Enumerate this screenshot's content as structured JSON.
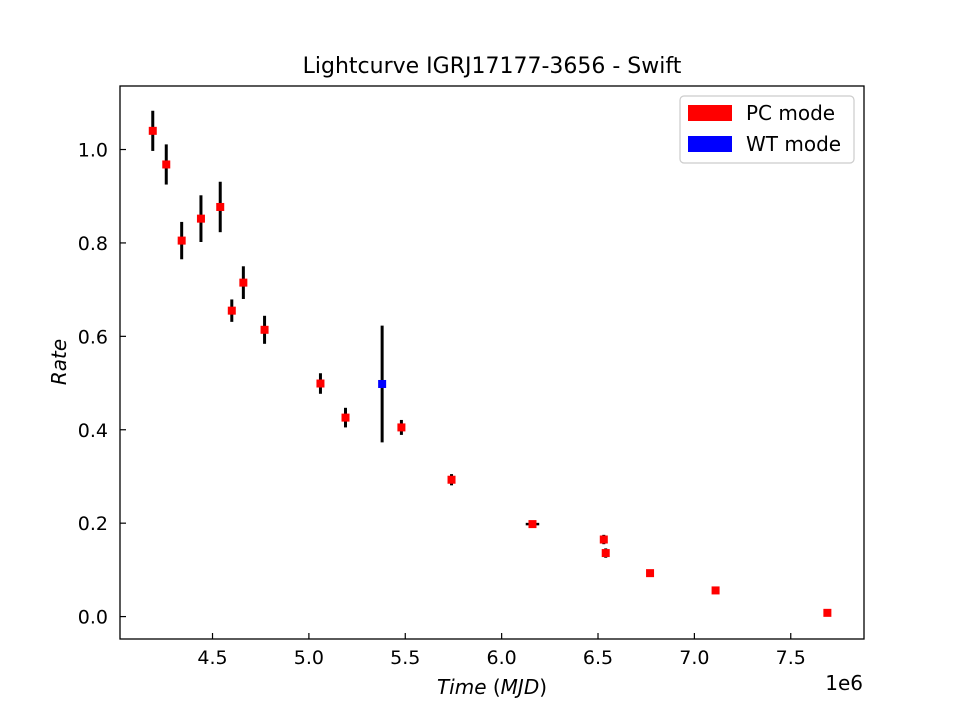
{
  "chart_data": {
    "type": "scatter",
    "title": "Lightcurve IGRJ17177-3656 - Swift",
    "xlabel_main": "Time",
    "xlabel_unit": "MJD",
    "ylabel": "Rate",
    "x_offset_label": "1e6",
    "x_ticks": [
      4.5,
      5.0,
      5.5,
      6.0,
      6.5,
      7.0,
      7.5
    ],
    "x_tick_labels": [
      "4.5",
      "5.0",
      "5.5",
      "6.0",
      "6.5",
      "7.0",
      "7.5"
    ],
    "y_ticks": [
      0.0,
      0.2,
      0.4,
      0.6,
      0.8,
      1.0
    ],
    "y_tick_labels": [
      "0.0",
      "0.2",
      "0.4",
      "0.6",
      "0.8",
      "1.0"
    ],
    "xlim": [
      4.02,
      7.88
    ],
    "ylim": [
      -0.048,
      1.136
    ],
    "grid": false,
    "legend_position": "top-right",
    "series": [
      {
        "name": "PC mode",
        "color": "#ff0000",
        "points": [
          {
            "x": 4.19,
            "y": 1.04,
            "err": 0.043
          },
          {
            "x": 4.26,
            "y": 0.968,
            "err": 0.043
          },
          {
            "x": 4.34,
            "y": 0.805,
            "err": 0.04
          },
          {
            "x": 4.44,
            "y": 0.852,
            "err": 0.05
          },
          {
            "x": 4.54,
            "y": 0.877,
            "err": 0.054
          },
          {
            "x": 4.6,
            "y": 0.655,
            "err": 0.024
          },
          {
            "x": 4.66,
            "y": 0.715,
            "err": 0.035
          },
          {
            "x": 4.77,
            "y": 0.614,
            "err": 0.03
          },
          {
            "x": 5.06,
            "y": 0.499,
            "err": 0.022
          },
          {
            "x": 5.19,
            "y": 0.426,
            "err": 0.021
          },
          {
            "x": 5.48,
            "y": 0.405,
            "err": 0.016
          },
          {
            "x": 5.74,
            "y": 0.293,
            "err": 0.012
          },
          {
            "x": 6.16,
            "y": 0.198,
            "err": 0.006,
            "xerr": 0.035
          },
          {
            "x": 6.53,
            "y": 0.165,
            "err": 0.01
          },
          {
            "x": 6.54,
            "y": 0.136,
            "err": 0.01
          },
          {
            "x": 6.77,
            "y": 0.093,
            "err": 0.004
          },
          {
            "x": 7.11,
            "y": 0.056,
            "err": 0.003
          },
          {
            "x": 7.69,
            "y": 0.008,
            "err": 0.002
          }
        ]
      },
      {
        "name": "WT mode",
        "color": "#0000ff",
        "points": [
          {
            "x": 5.38,
            "y": 0.498,
            "err": 0.125
          }
        ]
      }
    ]
  }
}
